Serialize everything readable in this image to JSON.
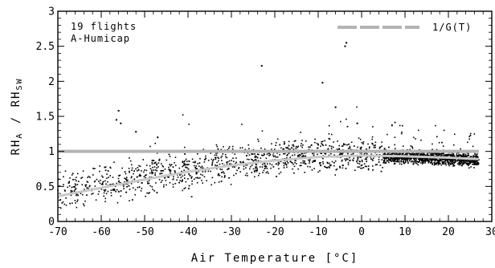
{
  "chart_data": {
    "type": "scatter",
    "title": "",
    "xlabel": "Air Temperature [°C]",
    "ylabel_main": "RH",
    "ylabel_sub_a": "A",
    "ylabel_mid": " / RH",
    "ylabel_sub_b": "SW",
    "xlim": [
      -70,
      30
    ],
    "ylim": [
      0,
      3
    ],
    "x_ticks": [
      -70,
      -60,
      -50,
      -40,
      -30,
      -20,
      -10,
      0,
      10,
      20,
      30
    ],
    "y_ticks": [
      0,
      0.5,
      1,
      1.5,
      2,
      2.5,
      3
    ],
    "x_tick_labels": [
      "-70",
      "-60",
      "-50",
      "-40",
      "-30",
      "-20",
      "-10",
      "0",
      "10",
      "20",
      "30"
    ],
    "y_tick_labels": [
      "0",
      "0.5",
      "1",
      "1.5",
      "2",
      "2.5",
      "3"
    ],
    "annotations": [
      "19 flights",
      "A-Humicap"
    ],
    "grid": false,
    "legend": {
      "position": "top-right",
      "entries": [
        "1/G(T)"
      ]
    },
    "series": [
      {
        "name": "1/G(T)",
        "type": "line",
        "color": "#b4b4b4",
        "x": [
          -70,
          -60,
          -50,
          -40,
          -30,
          -20,
          -10,
          0,
          10,
          20,
          27
        ],
        "y": [
          1.0,
          1.0,
          1.0,
          1.0,
          1.0,
          1.0,
          1.0,
          1.0,
          1.0,
          1.0,
          1.0
        ]
      },
      {
        "type": "scatter",
        "color": "#000000",
        "description_free": true,
        "trend_x": [
          -70,
          -65,
          -60,
          -55,
          -50,
          -45,
          -40,
          -35,
          -30,
          -25,
          -20,
          -15,
          -10,
          -5,
          0,
          5,
          10,
          15,
          20,
          25,
          27
        ],
        "trend_y": [
          0.4,
          0.46,
          0.53,
          0.59,
          0.64,
          0.69,
          0.74,
          0.78,
          0.83,
          0.87,
          0.9,
          0.93,
          0.95,
          0.95,
          0.94,
          0.93,
          0.92,
          0.91,
          0.9,
          0.88,
          0.87
        ],
        "outliers_x": [
          -56,
          -56.5,
          -55.5,
          -52,
          -47,
          -23,
          -9,
          -6,
          -3.5,
          -3.8,
          -1
        ],
        "outliers_y": [
          1.58,
          1.45,
          1.4,
          1.28,
          1.2,
          2.22,
          1.98,
          1.63,
          2.55,
          2.5,
          1.4
        ]
      },
      {
        "type": "line",
        "color": "#c8c8c8",
        "x": [
          -70,
          -60,
          -50,
          -40,
          -30,
          -20,
          -10,
          0,
          10,
          20,
          27
        ],
        "y": [
          0.36,
          0.48,
          0.6,
          0.71,
          0.8,
          0.87,
          0.92,
          0.94,
          0.93,
          0.91,
          0.89
        ]
      }
    ]
  }
}
